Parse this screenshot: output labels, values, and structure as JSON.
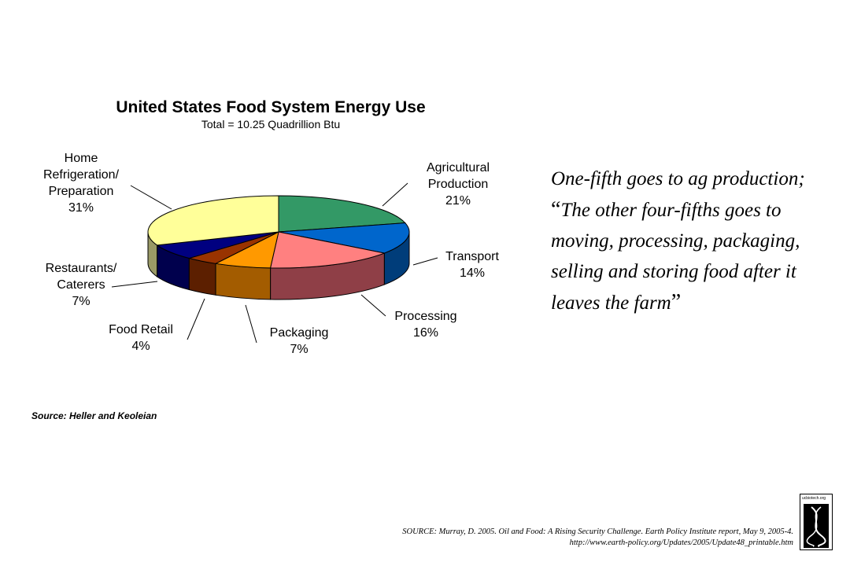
{
  "chart_data": {
    "type": "pie",
    "title": "United States Food System Energy Use",
    "subtitle": "Total = 10.25 Quadrillion Btu",
    "slices": [
      {
        "label_lines": [
          "Agricultural",
          "Production",
          "21%"
        ],
        "value": 21,
        "color": "#339966",
        "dark": "#1f5c3d"
      },
      {
        "label_lines": [
          "Transport",
          "14%"
        ],
        "value": 14,
        "color": "#0066cc",
        "dark": "#003d7a"
      },
      {
        "label_lines": [
          "Processing",
          "16%"
        ],
        "value": 16,
        "color": "#ff8080",
        "dark": "#8f3f47"
      },
      {
        "label_lines": [
          "Packaging",
          "7%"
        ],
        "value": 7,
        "color": "#ff9900",
        "dark": "#a35c00"
      },
      {
        "label_lines": [
          "Food Retail",
          "4%"
        ],
        "value": 4,
        "color": "#993300",
        "dark": "#5c1f00"
      },
      {
        "label_lines": [
          "Restaurants/",
          "Caterers",
          "7%"
        ],
        "value": 7,
        "color": "#000080",
        "dark": "#00004d"
      },
      {
        "label_lines": [
          "Home",
          "Refrigeration/",
          "Preparation",
          "31%"
        ],
        "value": 31,
        "color": "#ffff99",
        "dark": "#999966"
      }
    ],
    "source_note": "Source: Heller and Keoleian"
  },
  "quote": {
    "text_before": "One-fifth goes to ag production; ",
    "open_quote": "“",
    "text_quote": "The other four-fifths goes to moving, processing, packaging, selling and storing food after it leaves the farm",
    "close_quote": "”"
  },
  "citation": {
    "line1": "SOURCE:  Murray, D. 2005. Oil and Food: A Rising Security Challenge. Earth Policy Institute report, May 9, 2005-4.",
    "line2": "http://www.earth-policy.org/Updates/2005/Update48_printable.htm"
  },
  "logo": {
    "text": "ucbiotech.org"
  }
}
